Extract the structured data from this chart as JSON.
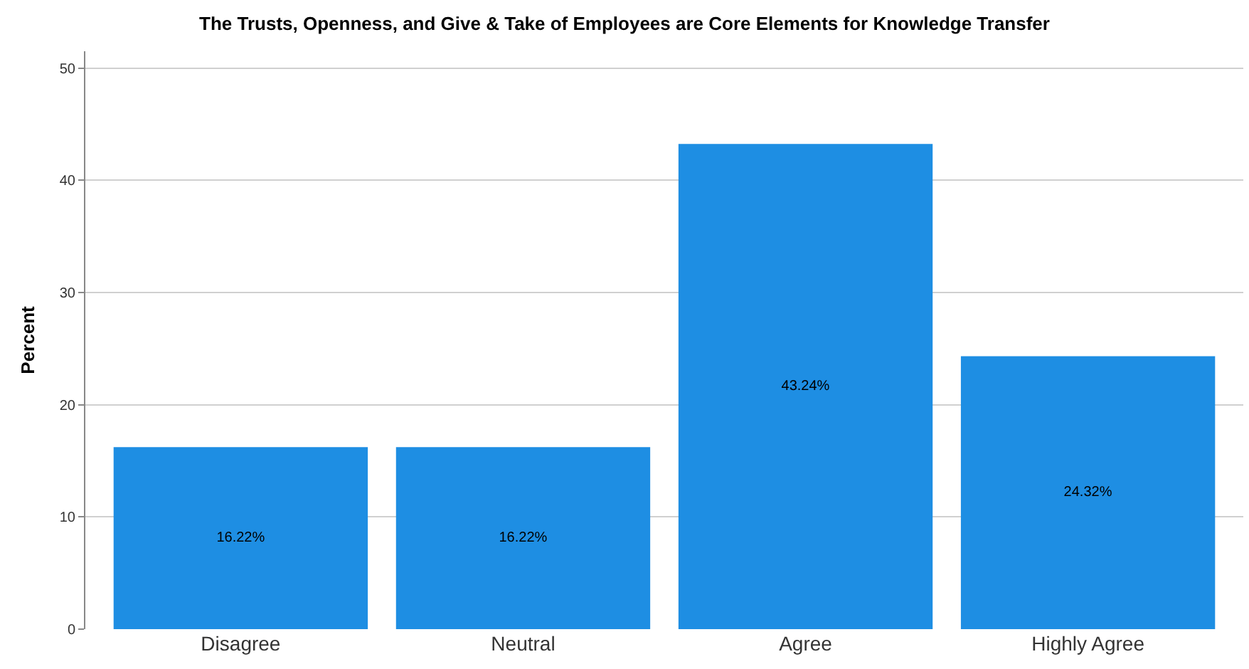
{
  "chart_data": {
    "type": "bar",
    "title": "The Trusts, Openness, and Give & Take of Employees are Core Elements for Knowledge Transfer",
    "ylabel": "Percent",
    "categories": [
      "Disagree",
      "Neutral",
      "Agree",
      "Highly Agree"
    ],
    "values": [
      16.22,
      16.22,
      43.24,
      24.32
    ],
    "value_labels": [
      "16.22%",
      "16.22%",
      "43.24%",
      "24.32%"
    ],
    "color": "#1e8ee3",
    "ylim": [
      0,
      51.5
    ],
    "yticks": [
      0,
      10,
      20,
      30,
      40,
      50
    ],
    "grid": "y"
  }
}
